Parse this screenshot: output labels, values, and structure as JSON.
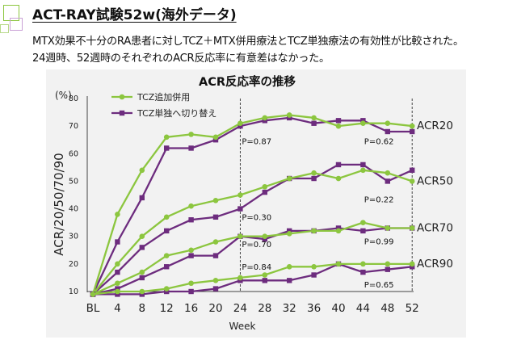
{
  "header": {
    "title": "ACT-RAY試験52w(海外データ)",
    "line1": "MTX効果不十分のRA患者に対しTCZ＋MTX併用療法とTCZ単独療法の有効性が比較された。",
    "line2": "24週時、52週時のそれぞれのACR反応率に有意差はなかった。"
  },
  "colors": {
    "combo": "#8cc63f",
    "mono": "#6d2c7e",
    "panel": "#f2f2f2"
  },
  "chart_data": {
    "type": "line",
    "title": "ACR反応率の推移",
    "xlabel": "Week",
    "ylabel": "ACR/20/50/70/90",
    "yunit": "(%)",
    "ylim": [
      10,
      80
    ],
    "yticks": [
      10,
      20,
      30,
      40,
      50,
      60,
      70,
      80
    ],
    "categories": [
      "BL",
      "4",
      "8",
      "12",
      "16",
      "20",
      "24",
      "28",
      "32",
      "36",
      "40",
      "44",
      "48",
      "52"
    ],
    "legend": [
      "TCZ追加併用",
      "TCZ単独へ切り替え"
    ],
    "legend_position": "top-left",
    "grid": false,
    "vlines": [
      "24",
      "52"
    ],
    "groups": [
      {
        "label": "ACR20",
        "combo": [
          9,
          38,
          54,
          66,
          67,
          66,
          71,
          73,
          74,
          73,
          70,
          71,
          71,
          70
        ],
        "mono": [
          9,
          28,
          44,
          62,
          62,
          65,
          70,
          72,
          73,
          71,
          72,
          72,
          68,
          68
        ],
        "pvalues": [
          {
            "text": "P=0.87",
            "week": "24",
            "y": 64.6
          },
          {
            "text": "P=0.62",
            "week": "48",
            "y": 64.6
          }
        ]
      },
      {
        "label": "ACR50",
        "combo": [
          9,
          20,
          30,
          37,
          41,
          43,
          45,
          48,
          51,
          53,
          51,
          54,
          53,
          50
        ],
        "mono": [
          9,
          17,
          26,
          32,
          36,
          37,
          40,
          46,
          51,
          51,
          56,
          56,
          50,
          54
        ],
        "pvalues": [
          {
            "text": "P=0.30",
            "week": "24",
            "y": 37.1
          },
          {
            "text": "P=0.22",
            "week": "48",
            "y": 43.6
          }
        ]
      },
      {
        "label": "ACR70",
        "combo": [
          9,
          13,
          17,
          23,
          25,
          28,
          30,
          30,
          31,
          32,
          32,
          35,
          33,
          33
        ],
        "mono": [
          9,
          11,
          15,
          19,
          23,
          23,
          30,
          29,
          32,
          32,
          33,
          32,
          33,
          33
        ],
        "pvalues": [
          {
            "text": "P=0.70",
            "week": "24",
            "y": 27.3
          },
          {
            "text": "P=0.99",
            "week": "48",
            "y": 28.3
          }
        ]
      },
      {
        "label": "ACR90",
        "combo": [
          9,
          10,
          10,
          11,
          13,
          14,
          15,
          16,
          19,
          19,
          20,
          20,
          20,
          20
        ],
        "mono": [
          9,
          9,
          9,
          10,
          10,
          11,
          14,
          14,
          14,
          16,
          20,
          17,
          18,
          19
        ],
        "pvalues": [
          {
            "text": "P=0.84",
            "week": "24",
            "y": 19.1
          },
          {
            "text": "P=0.65",
            "week": "48",
            "y": 12.7
          }
        ]
      }
    ]
  }
}
